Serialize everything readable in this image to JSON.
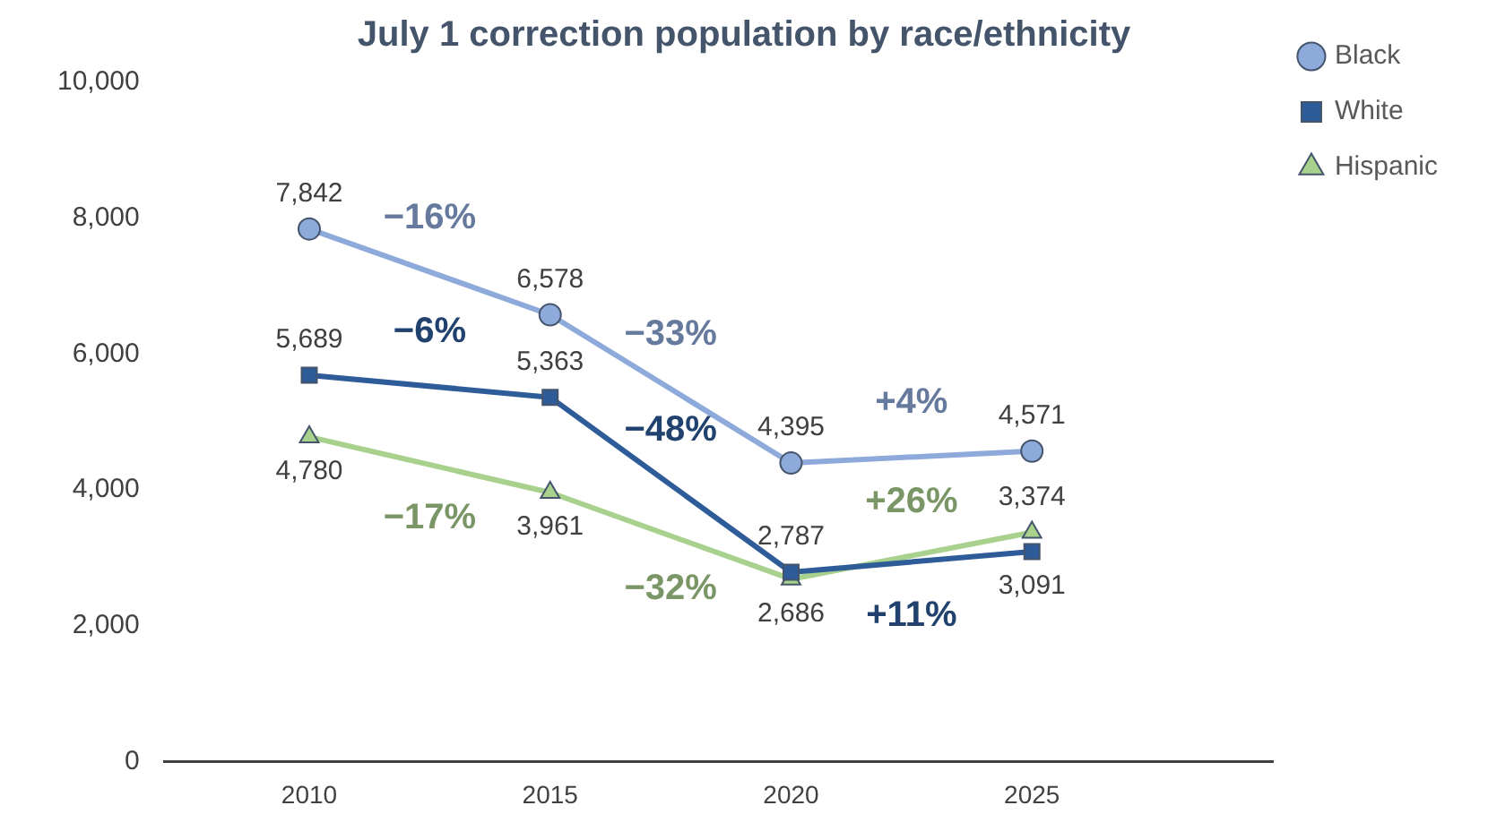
{
  "chart_data": {
    "type": "line",
    "title": "July 1 correction population by race/ethnicity",
    "x": [
      2010,
      2015,
      2020,
      2025
    ],
    "xlim": [
      2007,
      2030
    ],
    "xticks": [
      2010,
      2015,
      2020,
      2025
    ],
    "ylim": [
      0,
      10000
    ],
    "yticks": [
      {
        "value": 0,
        "label": "0"
      },
      {
        "value": 2000,
        "label": "2,000"
      },
      {
        "value": 4000,
        "label": "4,000"
      },
      {
        "value": 6000,
        "label": "6,000"
      },
      {
        "value": 8000,
        "label": "8,000"
      },
      {
        "value": 10000,
        "label": "10,000"
      }
    ],
    "series": [
      {
        "name": "Black",
        "color": "#8eaadb",
        "marker": "circle",
        "values": [
          7842,
          6578,
          4395,
          4571
        ],
        "value_labels": [
          "7,842",
          "6,578",
          "4,395",
          "4,571"
        ]
      },
      {
        "name": "White",
        "color": "#2e5c99",
        "marker": "square",
        "values": [
          5689,
          5363,
          2787,
          3091
        ],
        "value_labels": [
          "5,689",
          "5,363",
          "2,787",
          "3,091"
        ]
      },
      {
        "name": "Hispanic",
        "color": "#a9d18e",
        "marker": "triangle",
        "values": [
          4780,
          3961,
          2686,
          3374
        ],
        "value_labels": [
          "4,780",
          "3,961",
          "2,686",
          "3,374"
        ]
      }
    ],
    "annotations": [
      "−16%",
      "−6%",
      "−17%",
      "−33%",
      "−48%",
      "−32%",
      "+4%",
      "+11%",
      "+26%"
    ],
    "grid": false,
    "legend": "top right",
    "line_style": "solid"
  }
}
